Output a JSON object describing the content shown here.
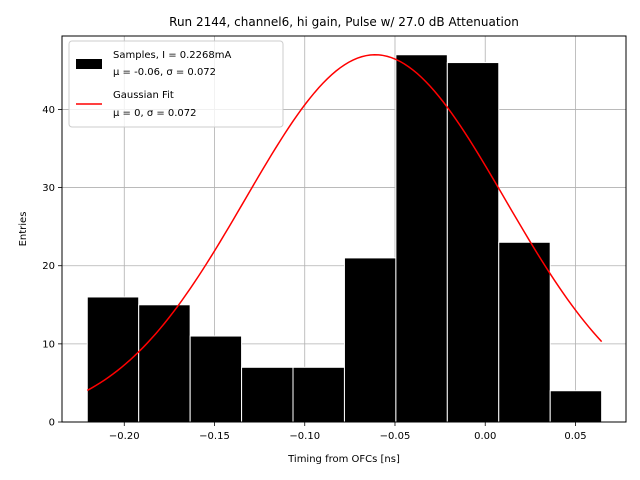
{
  "chart_data": {
    "type": "bar",
    "title": "Run 2144, channel6, hi gain, Pulse w/ 27.0 dB Attenuation",
    "xlabel": "Timing from OFCs [ns]",
    "ylabel": "Entries",
    "xlim": [
      -0.2345,
      0.078
    ],
    "ylim": [
      0,
      49.4
    ],
    "xticks": [
      -0.2,
      -0.15,
      -0.1,
      -0.05,
      0.0,
      0.05
    ],
    "xtick_labels": [
      "−0.20",
      "−0.15",
      "−0.10",
      "−0.05",
      "0.00",
      "0.05"
    ],
    "yticks": [
      0,
      10,
      20,
      30,
      40
    ],
    "ytick_labels": [
      "0",
      "10",
      "20",
      "30",
      "40"
    ],
    "grid": true,
    "legend_position": "top-left",
    "histogram": {
      "name": "Samples, I = 0.2268mA",
      "name_line2": "μ = -0.06, σ = 0.072",
      "color": "#000000",
      "bin_edges": [
        -0.2205,
        -0.192,
        -0.1635,
        -0.135,
        -0.1065,
        -0.078,
        -0.0495,
        -0.021,
        0.0075,
        0.036,
        0.0645
      ],
      "counts": [
        16,
        15,
        11,
        7,
        7,
        21,
        47,
        46,
        23,
        4
      ]
    },
    "fit": {
      "name": "Gaussian Fit",
      "name_line2": "μ = 0, σ = 0.072",
      "color": "#ff0000",
      "type": "gaussian",
      "mean": -0.061,
      "sigma": 0.072,
      "amplitude": 47,
      "x_range": [
        -0.2205,
        0.0645
      ]
    }
  }
}
